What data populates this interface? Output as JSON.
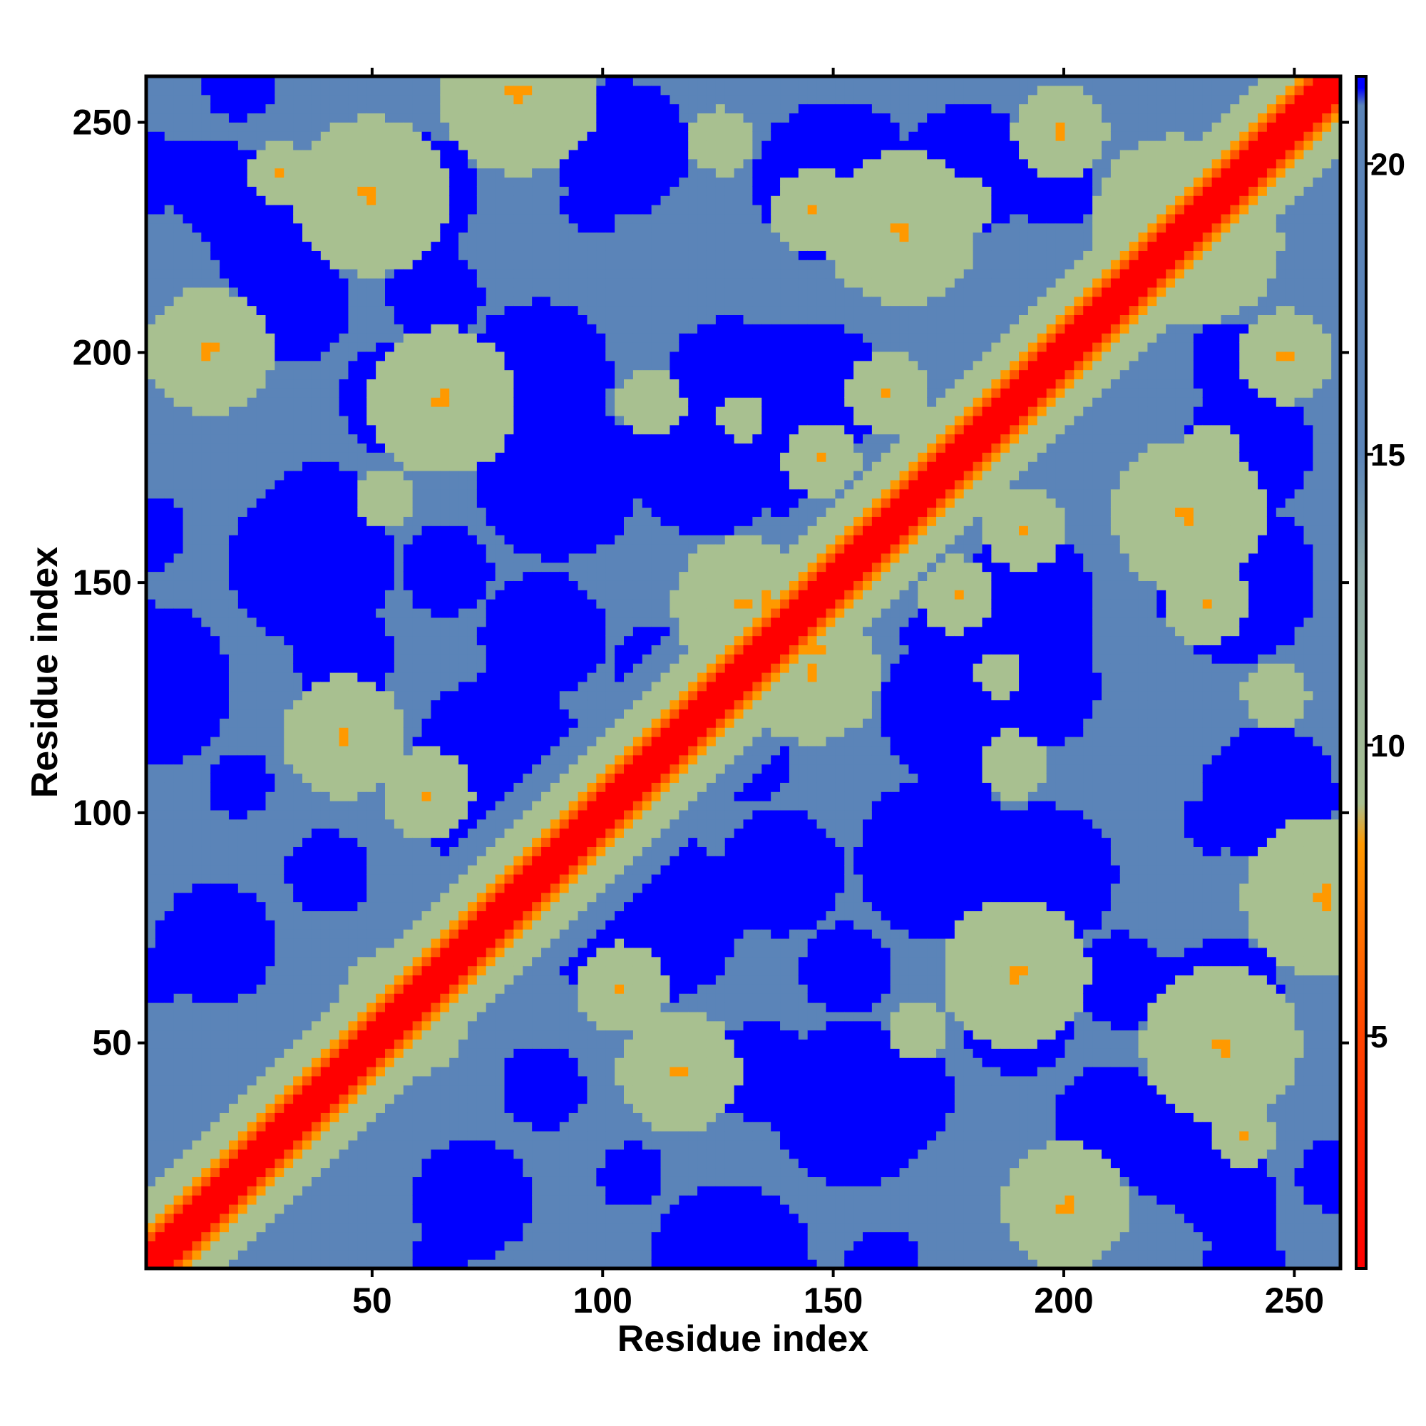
{
  "chart_data": {
    "type": "heatmap",
    "title": "",
    "xlabel": "Residue index",
    "ylabel": "Residue index",
    "xlim": [
      1,
      260
    ],
    "ylim": [
      1,
      260
    ],
    "x_ticks": [
      50,
      100,
      150,
      200,
      250
    ],
    "y_ticks": [
      50,
      100,
      150,
      200,
      250
    ],
    "x_tick_labels": [
      "50",
      "100",
      "150",
      "200",
      "250"
    ],
    "y_tick_labels": [
      "50",
      "100",
      "150",
      "200",
      "250"
    ],
    "colorbar": {
      "range": [
        1,
        21.5
      ],
      "ticks": [
        5,
        10,
        15,
        20
      ],
      "tick_labels": [
        "5",
        "10",
        "15",
        "20"
      ],
      "color_stops": [
        {
          "value": 1,
          "color": "#ff0000"
        },
        {
          "value": 5,
          "color": "#ff4400"
        },
        {
          "value": 8.3,
          "color": "#ff9900"
        },
        {
          "value": 9,
          "color": "#a8c090"
        },
        {
          "value": 13,
          "color": "#8aa8a8"
        },
        {
          "value": 15,
          "color": "#5b84b8"
        },
        {
          "value": 21,
          "color": "#5b84b8"
        },
        {
          "value": 21.3,
          "color": "#0000ff"
        }
      ]
    },
    "grid": false,
    "legend": "colorbar-right",
    "diagonal": "distance 0 along x = y, increasing away from diagonal",
    "colors": {
      "near": "#ff0000",
      "close": "#ff9900",
      "medium": "#a8c090",
      "far": "#5b84b8",
      "very_far": "#0000ff"
    }
  }
}
